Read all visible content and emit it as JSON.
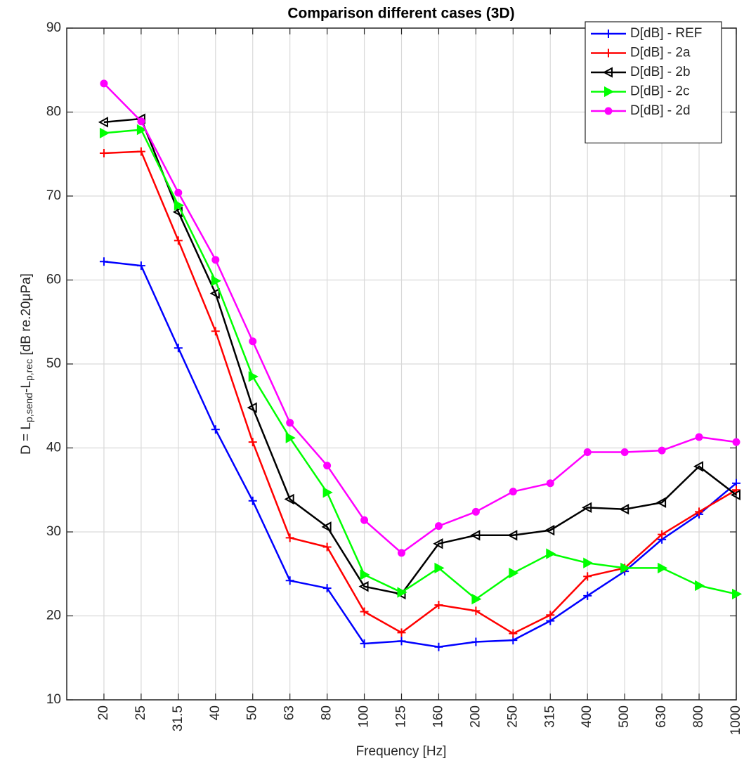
{
  "chart_data": {
    "type": "line",
    "title": "Comparison different cases (3D)",
    "x_label": "Frequency [Hz]",
    "y_label": [
      "D = L",
      "p,send",
      "-L",
      "p,rec",
      " [dB re.20μPa]"
    ],
    "categories": [
      "20",
      "25",
      "31.5",
      "40",
      "50",
      "63",
      "80",
      "100",
      "125",
      "160",
      "200",
      "250",
      "315",
      "400",
      "500",
      "630",
      "800",
      "1000"
    ],
    "ylim": [
      10,
      90
    ],
    "yticks": [
      10,
      20,
      30,
      40,
      50,
      60,
      70,
      80,
      90
    ],
    "grid": true,
    "legend": "top-right",
    "series": [
      {
        "name": "D[dB] - REF",
        "color": "#0000ff",
        "marker": "plus",
        "values": [
          62.2,
          61.7,
          51.9,
          42.2,
          33.7,
          24.2,
          23.3,
          16.7,
          17.0,
          16.3,
          16.9,
          17.1,
          19.4,
          22.4,
          25.3,
          29.1,
          32.1,
          35.8
        ]
      },
      {
        "name": "D[dB] - 2a",
        "color": "#ff0000",
        "marker": "plus",
        "values": [
          75.1,
          75.3,
          64.7,
          53.9,
          40.7,
          29.3,
          28.2,
          20.5,
          18.0,
          21.3,
          20.6,
          17.9,
          20.1,
          24.7,
          25.7,
          29.7,
          32.4,
          35.0
        ]
      },
      {
        "name": "D[dB] - 2b",
        "color": "#000000",
        "marker": "triangle-left",
        "values": [
          78.8,
          79.2,
          68.1,
          58.4,
          44.8,
          33.9,
          30.6,
          23.5,
          22.6,
          28.6,
          29.6,
          29.6,
          30.2,
          32.9,
          32.7,
          33.5,
          37.8,
          34.4
        ]
      },
      {
        "name": "D[dB] - 2c",
        "color": "#00ff00",
        "marker": "triangle-right",
        "values": [
          77.5,
          77.9,
          68.9,
          59.9,
          48.5,
          41.2,
          34.7,
          24.9,
          22.8,
          25.7,
          22.0,
          25.1,
          27.4,
          26.3,
          25.7,
          25.7,
          23.6,
          22.6
        ]
      },
      {
        "name": "D[dB] - 2d",
        "color": "#ff00ff",
        "marker": "circle",
        "values": [
          83.4,
          78.9,
          70.4,
          62.4,
          52.7,
          43.0,
          37.9,
          31.4,
          27.5,
          30.7,
          32.4,
          34.8,
          35.8,
          39.5,
          39.5,
          39.7,
          41.3,
          40.7
        ]
      }
    ]
  }
}
